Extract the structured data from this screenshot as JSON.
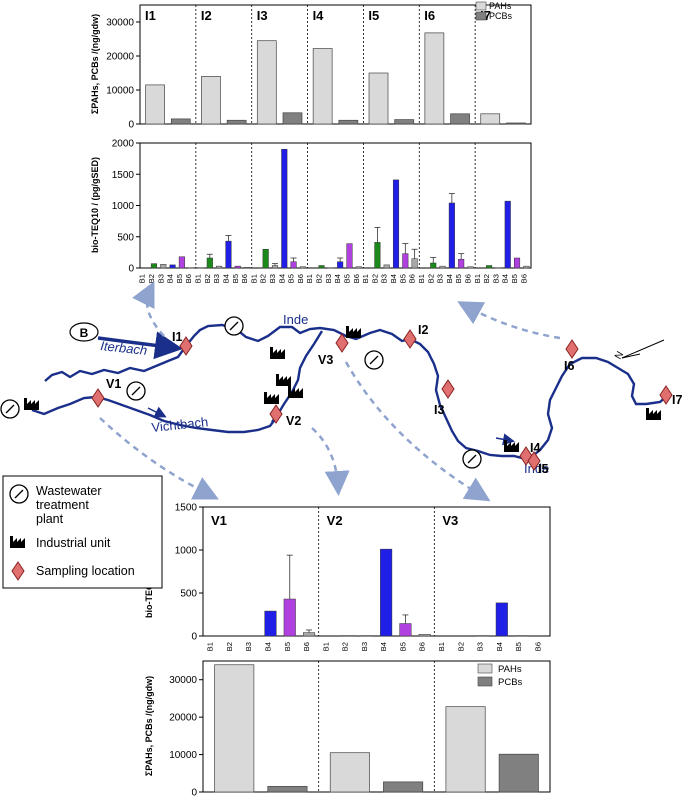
{
  "colors": {
    "pah": "#d9d9d9",
    "pcb": "#808080",
    "green": "#1b8a1b",
    "blue": "#1f1fe8",
    "purple": "#b040e0",
    "gray_bar": "#a9a9a9",
    "river": "#1a2f8a",
    "site_marker": "#e07070",
    "arrow_dashed": "#8fa3cf"
  },
  "legend_pah_pcb": {
    "pah": "PAHs",
    "pcb": "PCBs"
  },
  "map": {
    "rivers": [
      "Iterbach",
      "Inde",
      "Vichtbach",
      "Inde"
    ],
    "sites": [
      "I1",
      "I2",
      "V3",
      "I3",
      "I4",
      "I5",
      "I6",
      "I7",
      "V1",
      "V2"
    ],
    "badge": "B",
    "legend": {
      "wwtp_line1": "Wastewater",
      "wwtp_line2": "treatment",
      "wwtp_line3": "plant",
      "industrial": "Industrial unit",
      "sampling": "Sampling location"
    }
  },
  "chart_data": [
    {
      "type": "bar",
      "title": "",
      "panels": [
        "I1",
        "I2",
        "I3",
        "I4",
        "I5",
        "I6",
        "I7"
      ],
      "series": [
        {
          "name": "PAHs",
          "values": [
            11500,
            14000,
            24500,
            22200,
            15000,
            26800,
            3000
          ]
        },
        {
          "name": "PCBs",
          "values": [
            1500,
            1100,
            3300,
            1100,
            1300,
            3000,
            300
          ]
        }
      ],
      "ylabel": "ΣPAHs, PCBs /(ng/gdw)",
      "ylim": [
        0,
        35000
      ],
      "yticks": [
        "0",
        "10000",
        "20000",
        "30000"
      ],
      "legend": "top-right"
    },
    {
      "type": "bar",
      "title": "",
      "panels": [
        "I1",
        "I2",
        "I3",
        "I4",
        "I5",
        "I6",
        "I7"
      ],
      "categories": [
        "B1",
        "B2",
        "B3",
        "B4",
        "B5",
        "B6"
      ],
      "series_by_panel": [
        [
          0,
          70,
          60,
          50,
          180,
          5
        ],
        [
          5,
          160,
          30,
          430,
          30,
          10
        ],
        [
          0,
          300,
          40,
          1900,
          100,
          20
        ],
        [
          0,
          40,
          5,
          100,
          390,
          20
        ],
        [
          0,
          410,
          50,
          1410,
          230,
          150
        ],
        [
          0,
          80,
          30,
          1040,
          140,
          20
        ],
        [
          0,
          40,
          5,
          1070,
          160,
          30
        ]
      ],
      "errors_by_panel": [
        [
          0,
          0,
          0,
          0,
          0,
          0
        ],
        [
          0,
          60,
          0,
          90,
          0,
          0
        ],
        [
          0,
          0,
          30,
          0,
          60,
          0
        ],
        [
          0,
          0,
          0,
          60,
          0,
          0
        ],
        [
          0,
          240,
          0,
          0,
          160,
          150
        ],
        [
          0,
          90,
          0,
          150,
          90,
          0
        ],
        [
          0,
          0,
          0,
          0,
          0,
          0
        ]
      ],
      "bar_colors": [
        "gray_bar",
        "green",
        "gray_bar",
        "blue",
        "purple",
        "gray_bar"
      ],
      "ylabel": "bio-TEQ10 / (pg/gSED)",
      "ylim": [
        0,
        2000
      ],
      "yticks": [
        "0",
        "500",
        "1000",
        "1500",
        "2000"
      ]
    },
    {
      "type": "bar",
      "title": "",
      "panels": [
        "V1",
        "V2",
        "V3"
      ],
      "categories": [
        "B1",
        "B2",
        "B3",
        "B4",
        "B5",
        "B6"
      ],
      "series_by_panel": [
        [
          0,
          0,
          0,
          290,
          430,
          40
        ],
        [
          0,
          5,
          5,
          1010,
          145,
          20
        ],
        [
          0,
          0,
          5,
          385,
          5,
          0
        ]
      ],
      "errors_by_panel": [
        [
          0,
          0,
          0,
          0,
          510,
          30
        ],
        [
          0,
          0,
          0,
          0,
          100,
          0
        ],
        [
          0,
          0,
          0,
          0,
          0,
          0
        ]
      ],
      "bar_colors": [
        "gray_bar",
        "green",
        "gray_bar",
        "blue",
        "purple",
        "gray_bar"
      ],
      "ylabel": "bio-TEQ10 / (pg/gSED)",
      "ylim": [
        0,
        1500
      ],
      "yticks": [
        "0",
        "500",
        "1000",
        "1500"
      ]
    },
    {
      "type": "bar",
      "title": "",
      "panels": [
        "V1",
        "V2",
        "V3"
      ],
      "series": [
        {
          "name": "PAHs",
          "values": [
            34000,
            10500,
            22800
          ]
        },
        {
          "name": "PCBs",
          "values": [
            1500,
            2700,
            10100
          ]
        }
      ],
      "ylabel": "ΣPAHs, PCBs /(ng/gdw)",
      "ylim": [
        0,
        35000
      ],
      "yticks": [
        "0",
        "10000",
        "20000",
        "30000"
      ],
      "legend": "top-right"
    }
  ]
}
